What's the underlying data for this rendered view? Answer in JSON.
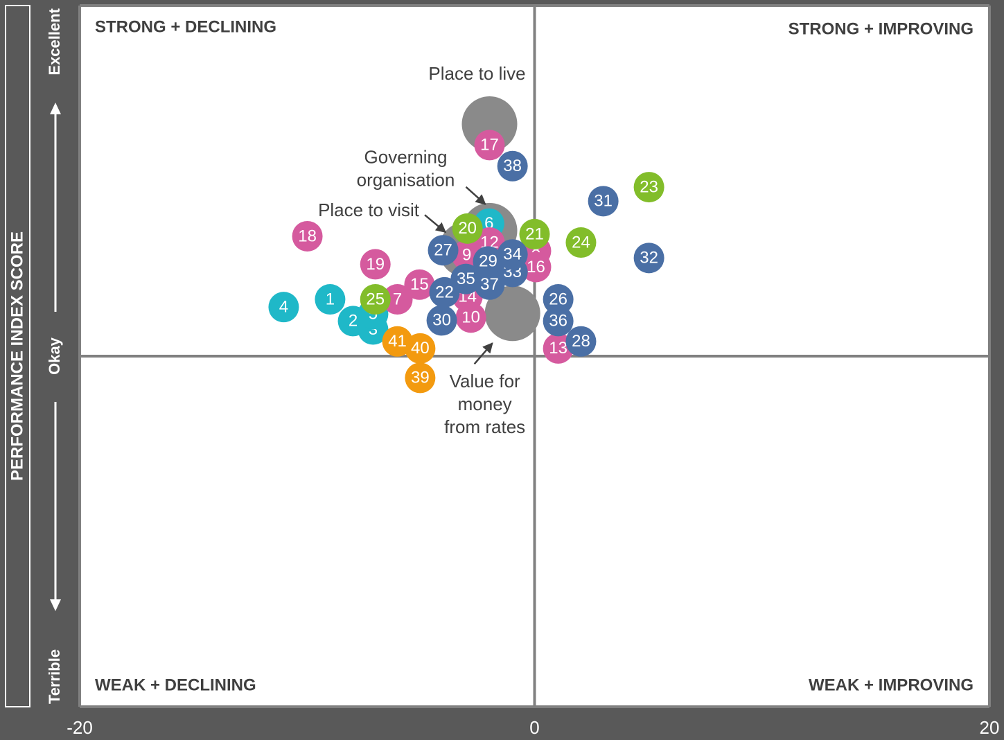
{
  "chart_data": {
    "type": "scatter",
    "ylabel": "PERFORMANCE INDEX SCORE",
    "xlim": [
      -20,
      20
    ],
    "xticks": [
      -20,
      0,
      20
    ],
    "ylim": [
      0,
      100
    ],
    "yticks": [
      {
        "value": 0,
        "label": "Terrible"
      },
      {
        "value": 50,
        "label": "Okay"
      },
      {
        "value": 100,
        "label": "Excellent"
      }
    ],
    "grid": true,
    "annotations": [
      "STRONG + DECLINING",
      "STRONG + IMPROVING",
      "WEAK + DECLINING",
      "WEAK + IMPROVING"
    ],
    "series": [
      {
        "color": "#8a8a8a",
        "labels": [
          "Place to live",
          [
            "Governing",
            "organisation"
          ],
          "Place to visit",
          [
            "Value for",
            "money",
            "from rates"
          ]
        ],
        "x": [
          -1.98,
          -1.98,
          -3.0,
          -0.97
        ],
        "y": [
          83.1,
          67.9,
          65.2,
          56.1
        ]
      },
      {
        "color": "#1fb8c8",
        "labels": [
          "1",
          "2",
          "3",
          "4",
          "5",
          "6"
        ],
        "x": [
          -8.99,
          -7.98,
          -7.1,
          -11.03,
          -7.1,
          -2.0
        ],
        "y": [
          58.1,
          55.0,
          53.8,
          57.0,
          56.0,
          68.9
        ]
      },
      {
        "color": "#d55a9e",
        "labels": [
          "7",
          "8",
          "9",
          "10",
          "12",
          "13",
          "14",
          "15",
          "16",
          "17",
          "18",
          "19"
        ],
        "x": [
          -6.03,
          0.06,
          -2.98,
          -2.8,
          -1.98,
          1.04,
          -2.95,
          -5.06,
          0.06,
          -1.98,
          -9.99,
          -7.0
        ],
        "y": [
          58.1,
          65.0,
          64.4,
          55.5,
          66.2,
          51.1,
          58.5,
          60.2,
          62.7,
          80.1,
          67.1,
          63.1
        ]
      },
      {
        "color": "#82bd2a",
        "labels": [
          "20",
          "21",
          "23",
          "24",
          "25"
        ],
        "x": [
          -2.95,
          0,
          5.03,
          2.04,
          -7.0
        ],
        "y": [
          68.2,
          67.4,
          74.1,
          66.2,
          58.1
        ]
      },
      {
        "color": "#4a6fa5",
        "labels": [
          "22",
          "26",
          "27",
          "28",
          "29",
          "30",
          "31",
          "32",
          "33",
          "34",
          "35",
          "36",
          "37",
          "38"
        ],
        "x": [
          -3.96,
          1.04,
          -4.02,
          2.04,
          -2.04,
          -4.08,
          3.02,
          5.03,
          -0.97,
          -0.97,
          -3.02,
          1.04,
          -1.98,
          -0.97
        ],
        "y": [
          59.1,
          58.1,
          65.1,
          52.1,
          63.5,
          55.1,
          72.1,
          64.0,
          62.0,
          64.5,
          61.0,
          55.0,
          60.2,
          77.1
        ]
      },
      {
        "color": "#f39a0f",
        "labels": [
          "39",
          "40",
          "41"
        ],
        "x": [
          -5.03,
          -5.03,
          -6.03
        ],
        "y": [
          46.9,
          51.1,
          52.1
        ]
      }
    ]
  }
}
